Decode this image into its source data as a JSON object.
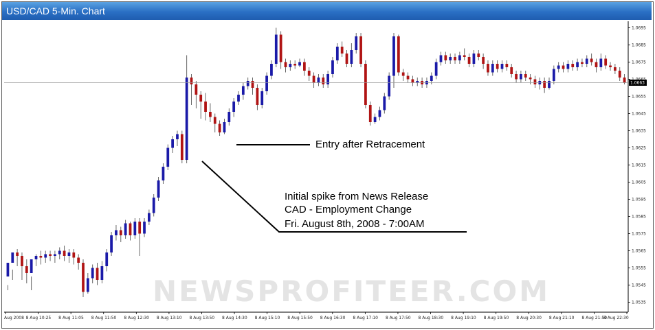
{
  "window": {
    "title": "USD/CAD 5-Min. Chart"
  },
  "watermark": "NEWSPROFITEER.COM",
  "colors": {
    "up": "#1a1aa8",
    "down": "#b01414",
    "text": "#000000",
    "title_bg": "#2a6fc4"
  },
  "chart_data": {
    "type": "candlestick",
    "title": "USD/CAD 5-Min. Chart",
    "ylim": [
      1.053,
      1.0698
    ],
    "y_ticks": [
      "1.0695",
      "1.0685",
      "1.0675",
      "1.0665",
      "1.0655",
      "1.0645",
      "1.0635",
      "1.0625",
      "1.0615",
      "1.0605",
      "1.0595",
      "1.0585",
      "1.0575",
      "1.0565",
      "1.0555",
      "1.0545",
      "1.0535"
    ],
    "x_ticks": [
      "Aug 2008",
      "8 Aug 10:25",
      "8 Aug 11:05",
      "8 Aug 11:50",
      "8 Aug 12:30",
      "8 Aug 13:10",
      "8 Aug 13:50",
      "8 Aug 14:30",
      "8 Aug 15:10",
      "8 Aug 15:50",
      "8 Aug 16:30",
      "8 Aug 17:10",
      "8 Aug 17:50",
      "8 Aug 18:30",
      "8 Aug 19:10",
      "8 Aug 19:50",
      "8 Aug 20:30",
      "8 Aug 21:10",
      "8 Aug 21:50",
      "8 Aug 22:30"
    ],
    "current_price": "1.0663",
    "annotations": [
      {
        "id": "entry",
        "text": "Entry after Retracement"
      },
      {
        "id": "spike",
        "lines": [
          "Initial spike from News Release",
          "CAD - Employment Change",
          "Fri. August 8th, 2008 - 7:00AM"
        ]
      }
    ],
    "candles": [
      [
        1.055,
        1.0558,
        1.0545,
        1.0542
      ],
      [
        1.0558,
        1.0564,
        1.0554,
        1.0548
      ],
      [
        1.0564,
        1.0562,
        1.0566,
        1.0556
      ],
      [
        1.0562,
        1.0556,
        1.0564,
        1.0548
      ],
      [
        1.0556,
        1.0552,
        1.056,
        1.0546
      ],
      [
        1.0552,
        1.056,
        1.055,
        1.0542
      ],
      [
        1.056,
        1.0562,
        1.0563,
        1.0556
      ],
      [
        1.0562,
        1.0561,
        1.0565,
        1.0557
      ],
      [
        1.0561,
        1.0563,
        1.0565,
        1.0558
      ],
      [
        1.0563,
        1.0562,
        1.0565,
        1.0559
      ],
      [
        1.0562,
        1.0563,
        1.0565,
        1.0558
      ],
      [
        1.0563,
        1.0565,
        1.0567,
        1.056
      ],
      [
        1.0565,
        1.0562,
        1.0568,
        1.0559
      ],
      [
        1.0562,
        1.0564,
        1.0566,
        1.0558
      ],
      [
        1.0564,
        1.0561,
        1.0566,
        1.0557
      ],
      [
        1.0561,
        1.0558,
        1.0563,
        1.0554
      ],
      [
        1.0558,
        1.0541,
        1.056,
        1.0538
      ],
      [
        1.0541,
        1.0549,
        1.0552,
        1.054
      ],
      [
        1.0549,
        1.0555,
        1.0557,
        1.0546
      ],
      [
        1.0555,
        1.0548,
        1.0558,
        1.0545
      ],
      [
        1.0548,
        1.0556,
        1.0559,
        1.0546
      ],
      [
        1.0556,
        1.0564,
        1.0566,
        1.0553
      ],
      [
        1.0564,
        1.0574,
        1.0576,
        1.0562
      ],
      [
        1.0574,
        1.0577,
        1.058,
        1.0571
      ],
      [
        1.0577,
        1.0574,
        1.0579,
        1.057
      ],
      [
        1.0574,
        1.0581,
        1.0583,
        1.0572
      ],
      [
        1.0581,
        1.0574,
        1.0582,
        1.0571
      ],
      [
        1.0574,
        1.0582,
        1.0584,
        1.0572
      ],
      [
        1.0582,
        1.0575,
        1.0584,
        1.0562
      ],
      [
        1.0575,
        1.0582,
        1.0584,
        1.0573
      ],
      [
        1.0582,
        1.0587,
        1.0589,
        1.058
      ],
      [
        1.0587,
        1.0596,
        1.0598,
        1.0585
      ],
      [
        1.0596,
        1.0606,
        1.0608,
        1.0594
      ],
      [
        1.0606,
        1.0614,
        1.0616,
        1.0604
      ],
      [
        1.0614,
        1.0625,
        1.0627,
        1.0612
      ],
      [
        1.0625,
        1.063,
        1.0632,
        1.0622
      ],
      [
        1.063,
        1.0633,
        1.0635,
        1.0626
      ],
      [
        1.0633,
        1.0618,
        1.0635,
        1.0616
      ],
      [
        1.0618,
        1.0666,
        1.0679,
        1.0616
      ],
      [
        1.0666,
        1.0662,
        1.0668,
        1.065
      ],
      [
        1.0662,
        1.0656,
        1.0664,
        1.0648
      ],
      [
        1.0656,
        1.0652,
        1.0658,
        1.0642
      ],
      [
        1.0652,
        1.0646,
        1.0657,
        1.0641
      ],
      [
        1.0646,
        1.0643,
        1.0651,
        1.064
      ],
      [
        1.0643,
        1.0639,
        1.0645,
        1.0634
      ],
      [
        1.0639,
        1.0634,
        1.0641,
        1.0632
      ],
      [
        1.0634,
        1.064,
        1.0642,
        1.0633
      ],
      [
        1.064,
        1.0646,
        1.0648,
        1.0638
      ],
      [
        1.0646,
        1.0652,
        1.0654,
        1.0643
      ],
      [
        1.0652,
        1.0656,
        1.0658,
        1.065
      ],
      [
        1.0656,
        1.0661,
        1.0663,
        1.0653
      ],
      [
        1.0661,
        1.0664,
        1.0666,
        1.0659
      ],
      [
        1.0664,
        1.066,
        1.0666,
        1.0656
      ],
      [
        1.066,
        1.065,
        1.0662,
        1.0647
      ],
      [
        1.065,
        1.0658,
        1.066,
        1.0648
      ],
      [
        1.0658,
        1.0667,
        1.0669,
        1.0656
      ],
      [
        1.0667,
        1.0674,
        1.0676,
        1.0665
      ],
      [
        1.0674,
        1.0691,
        1.0695,
        1.0672
      ],
      [
        1.0691,
        1.0675,
        1.0693,
        1.0671
      ],
      [
        1.0675,
        1.0672,
        1.0677,
        1.0669
      ],
      [
        1.0672,
        1.0674,
        1.0676,
        1.067
      ],
      [
        1.0674,
        1.0673,
        1.0676,
        1.0671
      ],
      [
        1.0673,
        1.0675,
        1.0677,
        1.0672
      ],
      [
        1.0675,
        1.067,
        1.0677,
        1.0667
      ],
      [
        1.067,
        1.0667,
        1.0672,
        1.0664
      ],
      [
        1.0667,
        1.0663,
        1.0669,
        1.066
      ],
      [
        1.0663,
        1.0666,
        1.0668,
        1.0661
      ],
      [
        1.0666,
        1.0662,
        1.0668,
        1.066
      ],
      [
        1.0662,
        1.0668,
        1.067,
        1.066
      ],
      [
        1.0668,
        1.0676,
        1.0678,
        1.0666
      ],
      [
        1.0676,
        1.0684,
        1.0686,
        1.0674
      ],
      [
        1.0684,
        1.068,
        1.0687,
        1.0678
      ],
      [
        1.068,
        1.0674,
        1.0682,
        1.0672
      ],
      [
        1.0674,
        1.0682,
        1.0686,
        1.0672
      ],
      [
        1.0682,
        1.069,
        1.0692,
        1.068
      ],
      [
        1.069,
        1.0674,
        1.0692,
        1.0672
      ],
      [
        1.0674,
        1.065,
        1.0676,
        1.0648
      ],
      [
        1.065,
        1.064,
        1.0652,
        1.0638
      ],
      [
        1.064,
        1.0643,
        1.0645,
        1.0639
      ],
      [
        1.0643,
        1.0647,
        1.0649,
        1.0641
      ],
      [
        1.0647,
        1.0655,
        1.0657,
        1.0645
      ],
      [
        1.0655,
        1.0667,
        1.0669,
        1.0653
      ],
      [
        1.0667,
        1.069,
        1.0692,
        1.066
      ],
      [
        1.069,
        1.0669,
        1.0691,
        1.0667
      ],
      [
        1.0669,
        1.0667,
        1.0671,
        1.0664
      ],
      [
        1.0667,
        1.0665,
        1.0669,
        1.0663
      ],
      [
        1.0665,
        1.0663,
        1.0667,
        1.0661
      ],
      [
        1.0663,
        1.0664,
        1.0666,
        1.0661
      ],
      [
        1.0664,
        1.0662,
        1.0666,
        1.066
      ],
      [
        1.0662,
        1.0664,
        1.0666,
        1.066
      ],
      [
        1.0664,
        1.0667,
        1.0669,
        1.0662
      ],
      [
        1.0667,
        1.0675,
        1.0677,
        1.0665
      ],
      [
        1.0675,
        1.0679,
        1.0681,
        1.0673
      ],
      [
        1.0679,
        1.0676,
        1.0681,
        1.0674
      ],
      [
        1.0676,
        1.0678,
        1.068,
        1.0674
      ],
      [
        1.0678,
        1.0676,
        1.068,
        1.0674
      ],
      [
        1.0676,
        1.0679,
        1.0681,
        1.0674
      ],
      [
        1.0679,
        1.0678,
        1.0683,
        1.0676
      ],
      [
        1.0678,
        1.0674,
        1.068,
        1.0672
      ],
      [
        1.0674,
        1.068,
        1.0682,
        1.0672
      ],
      [
        1.068,
        1.0678,
        1.0682,
        1.0676
      ],
      [
        1.0678,
        1.0674,
        1.068,
        1.0671
      ],
      [
        1.0674,
        1.0669,
        1.0676,
        1.0667
      ],
      [
        1.0669,
        1.0674,
        1.0676,
        1.0667
      ],
      [
        1.0674,
        1.0671,
        1.0676,
        1.0669
      ],
      [
        1.0671,
        1.0674,
        1.0676,
        1.0669
      ],
      [
        1.0674,
        1.0672,
        1.0676,
        1.067
      ],
      [
        1.0672,
        1.0668,
        1.0674,
        1.0666
      ],
      [
        1.0668,
        1.0665,
        1.067,
        1.0663
      ],
      [
        1.0665,
        1.0668,
        1.067,
        1.0663
      ],
      [
        1.0668,
        1.0666,
        1.067,
        1.0664
      ],
      [
        1.0666,
        1.0665,
        1.0668,
        1.0662
      ],
      [
        1.0665,
        1.0662,
        1.0667,
        1.066
      ],
      [
        1.0662,
        1.0664,
        1.0666,
        1.0659
      ],
      [
        1.0664,
        1.066,
        1.0666,
        1.0657
      ],
      [
        1.066,
        1.0664,
        1.0666,
        1.0659
      ],
      [
        1.0664,
        1.0671,
        1.0673,
        1.0662
      ],
      [
        1.0671,
        1.0673,
        1.0675,
        1.0669
      ],
      [
        1.0673,
        1.0671,
        1.0675,
        1.0669
      ],
      [
        1.0671,
        1.0674,
        1.0676,
        1.0669
      ],
      [
        1.0674,
        1.0672,
        1.0676,
        1.067
      ],
      [
        1.0672,
        1.0675,
        1.0677,
        1.067
      ],
      [
        1.0675,
        1.0674,
        1.0677,
        1.0672
      ],
      [
        1.0674,
        1.0677,
        1.0679,
        1.0672
      ],
      [
        1.0677,
        1.0675,
        1.068,
        1.0673
      ],
      [
        1.0675,
        1.0672,
        1.0677,
        1.0669
      ],
      [
        1.0672,
        1.0677,
        1.068,
        1.067
      ],
      [
        1.0677,
        1.0673,
        1.0679,
        1.0671
      ],
      [
        1.0673,
        1.0672,
        1.0675,
        1.067
      ],
      [
        1.0672,
        1.067,
        1.0674,
        1.0668
      ],
      [
        1.067,
        1.0666,
        1.0672,
        1.0664
      ],
      [
        1.0666,
        1.0663,
        1.0668,
        1.0662
      ]
    ]
  }
}
